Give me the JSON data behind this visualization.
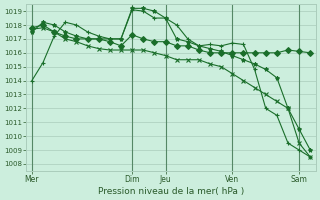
{
  "title": "",
  "xlabel": "Pression niveau de la mer( hPa )",
  "ylabel": "",
  "bg_color": "#cceedd",
  "grid_color": "#aaccbb",
  "line_color": "#1a6e2a",
  "vline_color": "#558866",
  "ylim": [
    1007.5,
    1019.5
  ],
  "yticks": [
    1008,
    1009,
    1010,
    1011,
    1012,
    1013,
    1014,
    1015,
    1016,
    1017,
    1018,
    1019
  ],
  "day_labels": [
    "Mer",
    "Dim",
    "Jeu",
    "Ven",
    "Sam"
  ],
  "day_positions": [
    0,
    9,
    12,
    18,
    24
  ],
  "xlim": [
    -0.5,
    25.5
  ],
  "series": [
    [
      1014.0,
      1015.3,
      1017.2,
      1018.2,
      1018.0,
      1017.5,
      1017.2,
      1017.0,
      1017.0,
      1019.1,
      1019.0,
      1018.5,
      1018.5,
      1018.0,
      1017.0,
      1016.5,
      1016.6,
      1016.5,
      1016.7,
      1016.6,
      1014.8,
      1012.0,
      1011.5,
      1009.5,
      1009.0,
      1008.5
    ],
    [
      1017.5,
      1018.2,
      1018.0,
      1017.5,
      1017.2,
      1017.0,
      1017.0,
      1017.0,
      1017.0,
      1019.2,
      1019.2,
      1019.0,
      1018.5,
      1017.0,
      1016.8,
      1016.5,
      1016.3,
      1016.1,
      1015.8,
      1015.5,
      1015.2,
      1014.8,
      1014.2,
      1012.0,
      1010.5,
      1009.0
    ],
    [
      1017.8,
      1018.0,
      1017.5,
      1017.2,
      1017.0,
      1017.0,
      1017.0,
      1016.8,
      1016.5,
      1017.3,
      1017.0,
      1016.8,
      1016.8,
      1016.5,
      1016.5,
      1016.2,
      1016.0,
      1016.0,
      1016.0,
      1016.0,
      1016.0,
      1016.0,
      1016.0,
      1016.2,
      1016.1,
      1016.0
    ],
    [
      1017.7,
      1017.8,
      1017.5,
      1017.0,
      1016.8,
      1016.5,
      1016.3,
      1016.2,
      1016.2,
      1016.2,
      1016.2,
      1016.0,
      1015.8,
      1015.5,
      1015.5,
      1015.5,
      1015.2,
      1015.0,
      1014.5,
      1014.0,
      1013.5,
      1013.0,
      1012.5,
      1012.0,
      1009.5,
      1008.5
    ]
  ]
}
